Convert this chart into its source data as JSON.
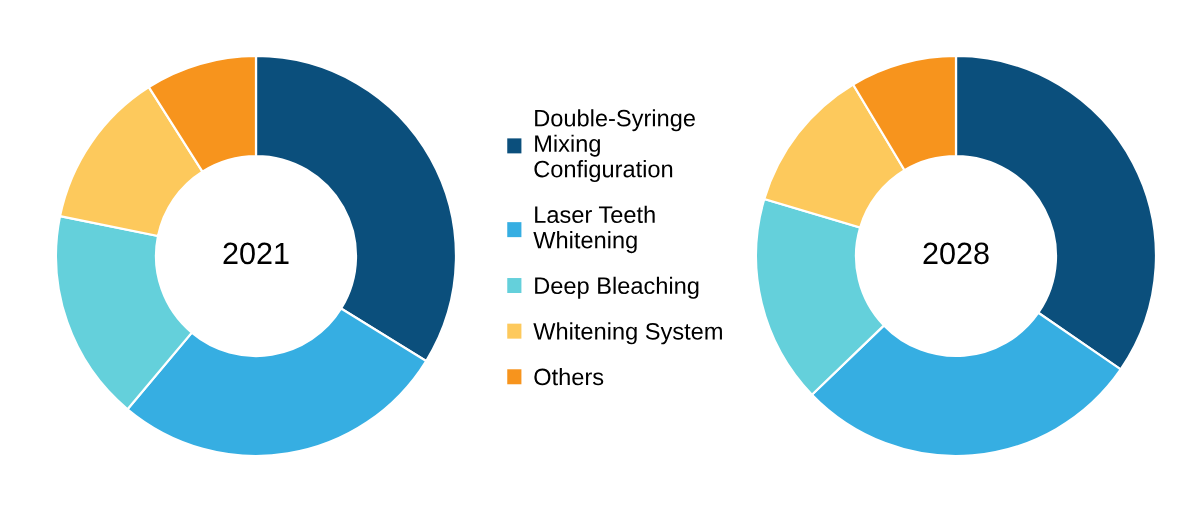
{
  "chart_data": [
    {
      "type": "donut",
      "title": "2021",
      "categories": [
        "Double-Syringe\nMixing\nConfiguration",
        "Laser Teeth\nWhitening",
        "Deep Bleaching",
        "Whitening System",
        "Others"
      ],
      "values": [
        33.8,
        27.3,
        17.1,
        12.8,
        9.0
      ],
      "colors": [
        "#0b4f7c",
        "#36aee2",
        "#64d0db",
        "#fdc95c",
        "#f7941d"
      ],
      "legend": "right"
    },
    {
      "type": "donut",
      "title": "2028",
      "categories": [
        null,
        null,
        null,
        null,
        null
      ],
      "values": [
        34.6,
        28.2,
        16.8,
        11.8,
        8.6
      ],
      "colors": [
        "#0b4f7c",
        "#36aee2",
        "#64d0db",
        "#fdc95c",
        "#f7941d"
      ]
    }
  ]
}
